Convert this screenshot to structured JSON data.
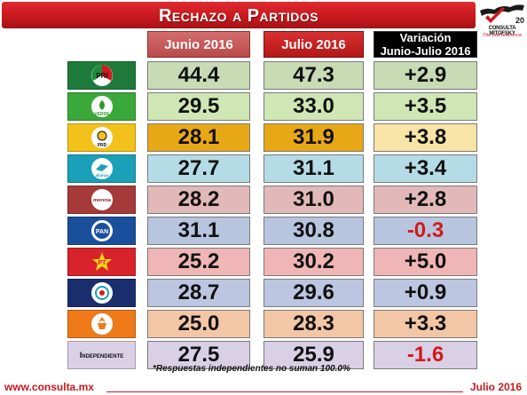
{
  "header": {
    "title": "Rechazo a Partidos",
    "logo_name": "CONSULTA MITOFSKY",
    "logo_tagline": "The poll reference",
    "logo_badge": "20"
  },
  "columns": {
    "junio": "Junio 2016",
    "julio": "Julio 2016",
    "variacion_line1": "Variación",
    "variacion_line2": "Junio-Julio 2016"
  },
  "rows": [
    {
      "party": "PRI",
      "junio": "44.4",
      "julio": "47.3",
      "variacion": "+2.9"
    },
    {
      "party": "VERDE",
      "junio": "29.5",
      "julio": "33.0",
      "variacion": "+3.5"
    },
    {
      "party": "PRD",
      "junio": "28.1",
      "julio": "31.9",
      "variacion": "+3.8"
    },
    {
      "party": "alianza",
      "junio": "27.7",
      "julio": "31.1",
      "variacion": "+3.4"
    },
    {
      "party": "morena",
      "junio": "28.2",
      "julio": "31.0",
      "variacion": "+2.8"
    },
    {
      "party": "PAN",
      "junio": "31.1",
      "julio": "30.8",
      "variacion": "-0.3"
    },
    {
      "party": "PT",
      "junio": "25.2",
      "julio": "30.2",
      "variacion": "+5.0"
    },
    {
      "party": "Movimiento Ciudadano",
      "junio": "28.7",
      "julio": "29.6",
      "variacion": "+0.9"
    },
    {
      "party": "PES",
      "junio": "25.0",
      "julio": "28.3",
      "variacion": "+3.3"
    },
    {
      "party": "Independiente",
      "junio": "27.5",
      "julio": "25.9",
      "variacion": "-1.6"
    }
  ],
  "independiente_label": "Independiente",
  "footnote": "*Respuestas independientes no suman 100.0%",
  "footer": {
    "url": "www.consulta.mx",
    "date": "Julio 2016"
  },
  "colors": {
    "brand_red": "#c8191e",
    "negative": "#d11a1a"
  }
}
